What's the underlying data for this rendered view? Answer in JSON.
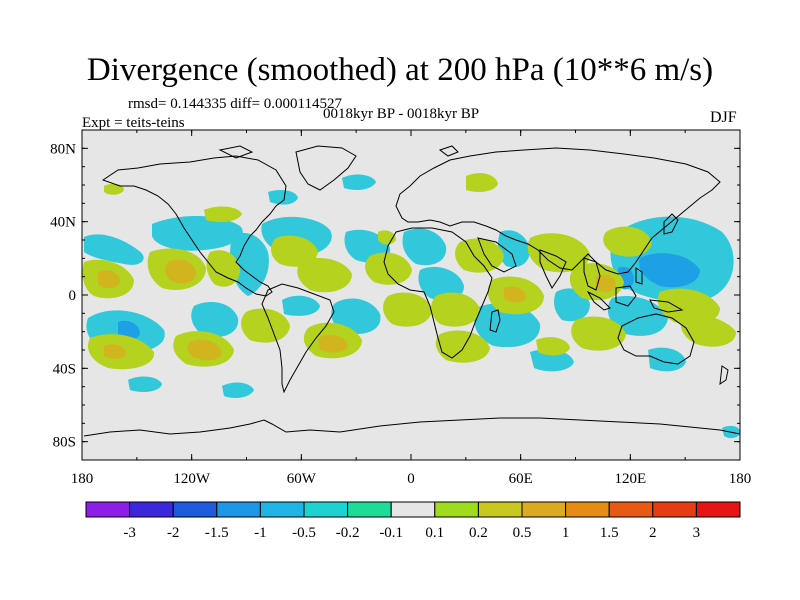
{
  "title": "Divergence (smoothed) at 200 hPa (10**6 m/s)",
  "stats": "rmsd= 0.144335 diff= 0.000114527",
  "experiment": "Expt = teits-teins",
  "period": "0018kyr BP - 0018kyr BP",
  "season": "DJF",
  "axes": {
    "lat_labels": [
      "80N",
      "40N",
      "0",
      "40S",
      "80S"
    ],
    "lat_values": [
      80,
      40,
      0,
      -40,
      -80
    ],
    "lon_labels": [
      "180",
      "120W",
      "60W",
      "0",
      "60E",
      "120E",
      "180"
    ],
    "lon_values": [
      -180,
      -120,
      -60,
      0,
      60,
      120,
      180
    ]
  },
  "colorbar": {
    "labels": [
      "-3",
      "-2",
      "-1.5",
      "-1",
      "-0.5",
      "-0.2",
      "-0.1",
      "0.1",
      "0.2",
      "0.5",
      "1",
      "1.5",
      "2",
      "3"
    ],
    "colors": [
      "#8c1ee6",
      "#3c28dc",
      "#1e5adc",
      "#1e96e6",
      "#1eb4e6",
      "#1ed2d2",
      "#1edc96",
      "#e6e6e6",
      "#a0dc1e",
      "#c8c81e",
      "#dcaa1e",
      "#e68c14",
      "#e65a14",
      "#e63c14",
      "#e61414"
    ]
  },
  "colors": {
    "neg_weak": "#32c8dc",
    "neg_mid": "#1ea0e6",
    "pos_weak": "#b4d21e",
    "pos_mid": "#d2b41e",
    "land_bg": "#e6e6e6",
    "coast": "#000000"
  }
}
